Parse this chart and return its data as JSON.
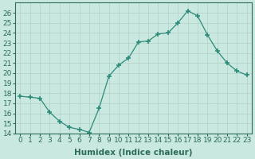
{
  "x": [
    0,
    1,
    2,
    3,
    4,
    5,
    6,
    7,
    8,
    9,
    10,
    11,
    12,
    13,
    14,
    15,
    16,
    17,
    18,
    19,
    20,
    21,
    22,
    23
  ],
  "y": [
    17.7,
    17.6,
    17.5,
    16.1,
    15.2,
    14.6,
    14.4,
    14.1,
    16.5,
    19.7,
    20.8,
    21.5,
    23.1,
    23.2,
    23.9,
    24.0,
    25.0,
    26.2,
    25.7,
    23.8,
    22.2,
    21.0,
    20.2,
    19.8
  ],
  "xlabel": "Humidex (Indice chaleur)",
  "ylim": [
    14,
    27
  ],
  "xlim": [
    -0.5,
    23.5
  ],
  "yticks": [
    14,
    15,
    16,
    17,
    18,
    19,
    20,
    21,
    22,
    23,
    24,
    25,
    26
  ],
  "xticks": [
    0,
    1,
    2,
    3,
    4,
    5,
    6,
    7,
    8,
    9,
    10,
    11,
    12,
    13,
    14,
    15,
    16,
    17,
    18,
    19,
    20,
    21,
    22,
    23
  ],
  "line_color": "#2e8b7a",
  "marker_color": "#2e8b7a",
  "bg_color": "#c8e8e0",
  "grid_color": "#b8d4cc",
  "text_color": "#2e6b5a",
  "xlabel_fontsize": 7.5,
  "tick_fontsize": 6.5
}
